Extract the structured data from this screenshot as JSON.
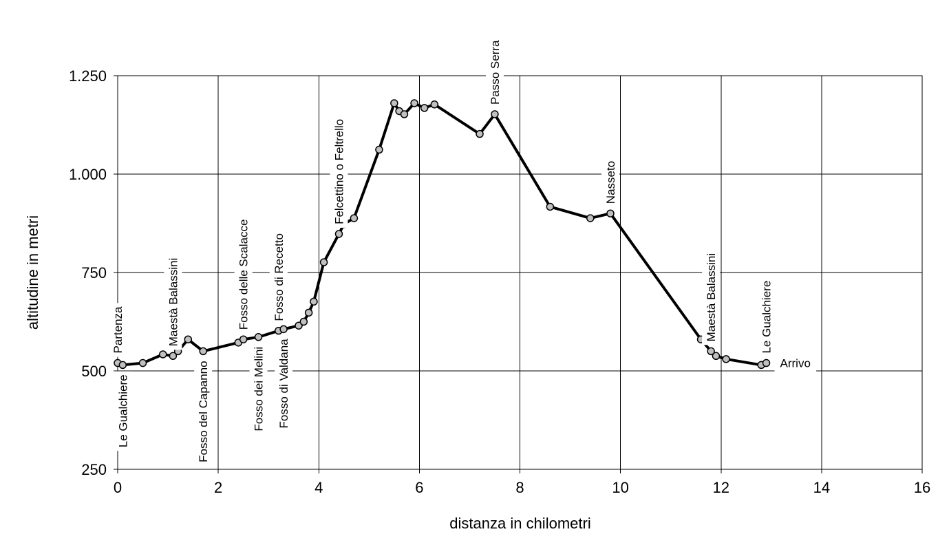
{
  "chart_data": {
    "type": "line",
    "xlabel": "distanza in chilometri",
    "ylabel": "altitudine  in metri",
    "xlim": [
      0,
      16
    ],
    "ylim": [
      250,
      1250
    ],
    "x_ticks": [
      0,
      2,
      4,
      6,
      8,
      10,
      12,
      14,
      16
    ],
    "x_tick_labels": [
      "0",
      "2",
      "4",
      "6",
      "8",
      "10",
      "12",
      "14",
      "16"
    ],
    "y_ticks": [
      250,
      500,
      750,
      1000,
      1250
    ],
    "y_tick_labels": [
      "250",
      "500",
      "750",
      "1.000",
      "1.250"
    ],
    "grid": true,
    "series": [
      {
        "x": [
          0.0,
          0.1,
          0.5,
          0.9,
          1.1,
          1.2,
          1.4,
          1.7,
          2.4,
          2.5,
          2.8,
          3.2,
          3.3,
          3.6,
          3.7,
          3.8,
          3.9,
          4.1,
          4.4,
          4.5,
          4.7,
          5.2,
          5.5,
          5.6,
          5.7,
          5.9,
          6.1,
          6.3,
          7.2,
          7.5,
          8.6,
          9.4,
          9.8,
          11.6,
          11.8,
          11.9,
          12.1,
          12.8,
          12.9
        ],
        "y": [
          520,
          515,
          520,
          542,
          538,
          550,
          580,
          550,
          572,
          580,
          586,
          602,
          606,
          615,
          625,
          648,
          676,
          776,
          848,
          873,
          888,
          1062,
          1180,
          1160,
          1152,
          1180,
          1168,
          1177,
          1102,
          1152,
          917,
          888,
          900,
          580,
          550,
          538,
          530,
          515,
          520
        ]
      }
    ],
    "annotations": [
      {
        "text": "Partenza",
        "x": 0.0,
        "y": 520,
        "side": "above"
      },
      {
        "text": "Le Gualchiere",
        "x": 0.1,
        "y": 515,
        "side": "below"
      },
      {
        "text": "Maestà Balassini",
        "x": 1.1,
        "y": 538,
        "side": "above"
      },
      {
        "text": "Fosso del Capanno",
        "x": 1.7,
        "y": 550,
        "side": "below"
      },
      {
        "text": "Fosso delle Scalacce",
        "x": 2.5,
        "y": 580,
        "side": "above"
      },
      {
        "text": "Fosso dei Melini",
        "x": 2.8,
        "y": 586,
        "side": "below"
      },
      {
        "text": "Fosso di Recetto",
        "x": 3.2,
        "y": 602,
        "side": "above"
      },
      {
        "text": "Fosso di Valdana",
        "x": 3.3,
        "y": 606,
        "side": "below"
      },
      {
        "text": "Felcettino o Feltrello",
        "x": 4.4,
        "y": 848,
        "side": "above"
      },
      {
        "text": "Passo Serra",
        "x": 7.5,
        "y": 1152,
        "side": "above"
      },
      {
        "text": "Nasseto",
        "x": 9.8,
        "y": 900,
        "side": "above"
      },
      {
        "text": "Maestà Balassini",
        "x": 11.8,
        "y": 550,
        "side": "above"
      },
      {
        "text": "Le Gualchiere",
        "x": 12.9,
        "y": 520,
        "side": "above"
      },
      {
        "text": "Arrivo",
        "x": 12.9,
        "y": 520,
        "side": "right"
      }
    ]
  }
}
